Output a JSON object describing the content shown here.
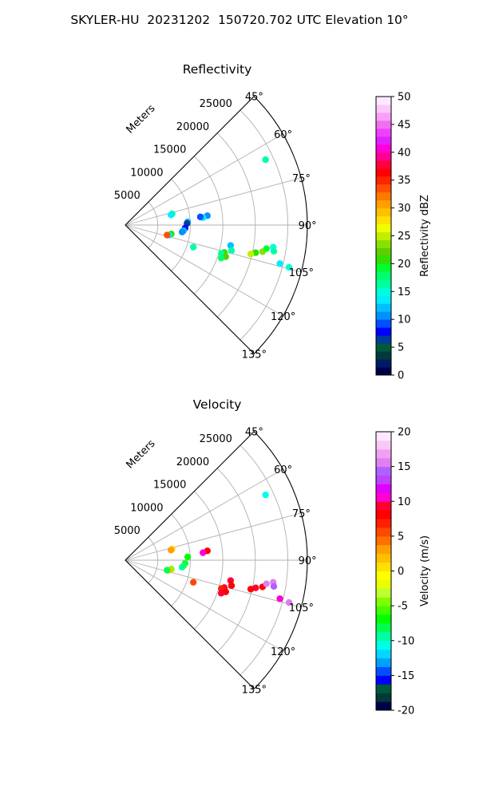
{
  "figure": {
    "suptitle": "SKYLER-HU  20231202  150720.702 UTC Elevation 10°"
  },
  "chart_data": [
    {
      "type": "polar-sector",
      "title": "Reflectivity",
      "radial_label": "Meters",
      "rlim": [
        0,
        28000
      ],
      "radial_ticks": [
        5000,
        10000,
        15000,
        20000,
        25000
      ],
      "theta_range_deg": [
        45,
        135
      ],
      "theta_ticks_deg": [
        45,
        60,
        75,
        90,
        105,
        120,
        135
      ],
      "theta_tick_labels": [
        "45°",
        "60°",
        "75°",
        "90°",
        "105°",
        "120°",
        "135°"
      ],
      "grid": true,
      "colorbar": {
        "label": "Reflectivity dBZ",
        "range": [
          0,
          50
        ],
        "ticks": [
          0,
          5,
          10,
          15,
          20,
          25,
          30,
          35,
          40,
          45,
          50
        ],
        "colors": [
          "#00004a",
          "#001a66",
          "#003a3a",
          "#005a3a",
          "#003a9a",
          "#0000ff",
          "#0050ff",
          "#0090ff",
          "#00c0ff",
          "#00ecff",
          "#00ffd8",
          "#00ffa0",
          "#00ff6a",
          "#00ff30",
          "#30e000",
          "#5ad000",
          "#8ae000",
          "#c0f000",
          "#f0ff00",
          "#ffe000",
          "#ffc000",
          "#ffa000",
          "#ff7800",
          "#ff5000",
          "#ff2400",
          "#ff0000",
          "#ff0040",
          "#ff0090",
          "#ff00d8",
          "#e020ff",
          "#f040ff",
          "#f070f0",
          "#f8a0f8",
          "#fcc8fc",
          "#ffe8ff"
        ]
      },
      "echoes": [
        {
          "az": 83.5,
          "r": 12700,
          "value": 11
        },
        {
          "az": 84.5,
          "r": 12000,
          "value": 13
        },
        {
          "az": 83.8,
          "r": 11600,
          "value": 9
        },
        {
          "az": 76.5,
          "r": 7400,
          "value": 16
        },
        {
          "az": 77.5,
          "r": 7200,
          "value": 14
        },
        {
          "az": 87.0,
          "r": 9600,
          "value": 12
        },
        {
          "az": 88.5,
          "r": 9500,
          "value": 6
        },
        {
          "az": 93.0,
          "r": 9200,
          "value": 8
        },
        {
          "az": 95.5,
          "r": 9000,
          "value": 12
        },
        {
          "az": 97.0,
          "r": 8800,
          "value": 10
        },
        {
          "az": 101.0,
          "r": 7200,
          "value": 20
        },
        {
          "az": 103.0,
          "r": 6900,
          "value": 14
        },
        {
          "az": 103.5,
          "r": 6600,
          "value": 33
        },
        {
          "az": 108.0,
          "r": 11000,
          "value": 16
        },
        {
          "az": 101.0,
          "r": 16500,
          "value": 12
        },
        {
          "az": 103.5,
          "r": 16800,
          "value": 16
        },
        {
          "az": 105.5,
          "r": 15800,
          "value": 20
        },
        {
          "az": 106.5,
          "r": 15400,
          "value": 17
        },
        {
          "az": 107.5,
          "r": 16200,
          "value": 22
        },
        {
          "az": 109.0,
          "r": 15600,
          "value": 18
        },
        {
          "az": 102.0,
          "r": 20500,
          "value": 21
        },
        {
          "az": 101.0,
          "r": 21500,
          "value": 24
        },
        {
          "az": 99.5,
          "r": 22000,
          "value": 19
        },
        {
          "az": 98.5,
          "r": 23000,
          "value": 15
        },
        {
          "az": 103.0,
          "r": 19800,
          "value": 25
        },
        {
          "az": 100.0,
          "r": 23200,
          "value": 17
        },
        {
          "az": 104.0,
          "r": 24500,
          "value": 13
        },
        {
          "az": 104.5,
          "r": 26000,
          "value": 15
        },
        {
          "az": 65.0,
          "r": 23800,
          "value": 16
        }
      ]
    },
    {
      "type": "polar-sector",
      "title": "Velocity",
      "radial_label": "Meters",
      "rlim": [
        0,
        28000
      ],
      "radial_ticks": [
        5000,
        10000,
        15000,
        20000,
        25000
      ],
      "theta_range_deg": [
        45,
        135
      ],
      "theta_ticks_deg": [
        45,
        60,
        75,
        90,
        105,
        120,
        135
      ],
      "theta_tick_labels": [
        "45°",
        "60°",
        "75°",
        "90°",
        "105°",
        "120°",
        "135°"
      ],
      "grid": true,
      "colorbar": {
        "label": "Velocity (m/s)",
        "range": [
          -20,
          20
        ],
        "ticks": [
          -20,
          -15,
          -10,
          -5,
          0,
          5,
          10,
          15,
          20
        ],
        "colors": [
          "#00004a",
          "#003a3a",
          "#005a3a",
          "#0000ff",
          "#0050ff",
          "#00a0ff",
          "#00d8ff",
          "#00ffe8",
          "#00ffa0",
          "#00ff50",
          "#00ff00",
          "#40ff00",
          "#80ff00",
          "#c0ff30",
          "#e8ff00",
          "#ffff00",
          "#ffe000",
          "#ffc000",
          "#ffa000",
          "#ff7000",
          "#ff4800",
          "#ff2000",
          "#ff0000",
          "#ff0030",
          "#ff00d0",
          "#e000ff",
          "#c040ff",
          "#b060ff",
          "#e080f0",
          "#f0a0f0",
          "#f8c8f8",
          "#ffe8ff"
        ]
      },
      "echoes": [
        {
          "az": 83.5,
          "r": 12700,
          "value": 8
        },
        {
          "az": 84.5,
          "r": 12000,
          "value": 10
        },
        {
          "az": 76.5,
          "r": 7400,
          "value": 1
        },
        {
          "az": 77.5,
          "r": 7200,
          "value": 3
        },
        {
          "az": 87.0,
          "r": 9600,
          "value": -7
        },
        {
          "az": 93.0,
          "r": 9200,
          "value": -8
        },
        {
          "az": 95.5,
          "r": 9000,
          "value": -6
        },
        {
          "az": 97.0,
          "r": 8800,
          "value": -9
        },
        {
          "az": 101.0,
          "r": 7200,
          "value": -4
        },
        {
          "az": 103.0,
          "r": 6900,
          "value": 2
        },
        {
          "az": 103.5,
          "r": 6600,
          "value": -8
        },
        {
          "az": 108.0,
          "r": 11000,
          "value": 6
        },
        {
          "az": 101.0,
          "r": 16500,
          "value": 9
        },
        {
          "az": 103.5,
          "r": 16800,
          "value": 8
        },
        {
          "az": 105.5,
          "r": 15800,
          "value": 9
        },
        {
          "az": 106.5,
          "r": 15400,
          "value": 7
        },
        {
          "az": 107.5,
          "r": 16200,
          "value": 8
        },
        {
          "az": 109.0,
          "r": 15600,
          "value": 9
        },
        {
          "az": 102.0,
          "r": 20500,
          "value": 9
        },
        {
          "az": 101.0,
          "r": 21500,
          "value": 8
        },
        {
          "az": 99.5,
          "r": 22000,
          "value": 15
        },
        {
          "az": 98.5,
          "r": 23000,
          "value": 16
        },
        {
          "az": 103.0,
          "r": 19800,
          "value": 8
        },
        {
          "az": 100.0,
          "r": 23200,
          "value": 14
        },
        {
          "az": 104.0,
          "r": 24500,
          "value": 11
        },
        {
          "az": 104.5,
          "r": 26000,
          "value": 15
        },
        {
          "az": 65.0,
          "r": 23800,
          "value": -11
        }
      ]
    }
  ]
}
